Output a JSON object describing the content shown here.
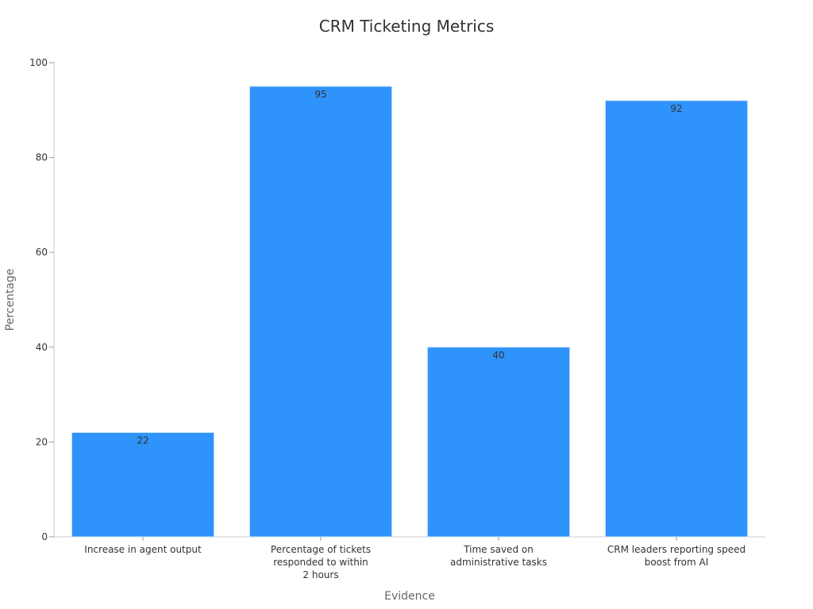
{
  "chart_data": {
    "type": "bar",
    "title": "CRM Ticketing Metrics",
    "xlabel": "Evidence",
    "ylabel": "Percentage",
    "categories": [
      "Increase in agent output",
      "Percentage of tickets responded to within 2 hours",
      "Time saved on administrative tasks",
      "CRM leaders reporting speed boost from AI"
    ],
    "category_lines": [
      [
        "Increase in agent output"
      ],
      [
        "Percentage of tickets",
        "responded to within",
        "2 hours"
      ],
      [
        "Time saved on",
        "administrative tasks"
      ],
      [
        "CRM leaders reporting speed",
        "boost from AI"
      ]
    ],
    "values": [
      22,
      95,
      40,
      92
    ],
    "data_labels": [
      "22",
      "95",
      "40",
      "92"
    ],
    "ylim": [
      0,
      100
    ],
    "yticks": [
      0,
      20,
      40,
      60,
      80,
      100
    ],
    "ytick_labels": [
      "0",
      "20",
      "40",
      "60",
      "80",
      "100"
    ],
    "grid": false,
    "legend": "none",
    "colors": {
      "bar": "#2e93fa",
      "bar_edge": "#cfe4fb"
    }
  }
}
